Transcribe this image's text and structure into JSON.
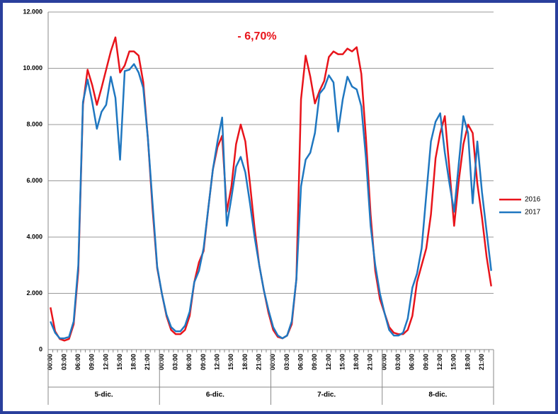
{
  "chart_data": {
    "type": "line",
    "annotation": "- 6,70%",
    "categories": [
      "00:00",
      null,
      null,
      "03:00",
      null,
      null,
      "06:00",
      null,
      null,
      "09:00",
      null,
      null,
      "12:00",
      null,
      null,
      "15:00",
      null,
      null,
      "18:00",
      null,
      null,
      "21:00",
      null,
      null,
      "00:00",
      null,
      null,
      "03:00",
      null,
      null,
      "06:00",
      null,
      null,
      "09:00",
      null,
      null,
      "12:00",
      null,
      null,
      "15:00",
      null,
      null,
      "18:00",
      null,
      null,
      "21:00",
      null,
      null,
      "00:00",
      null,
      null,
      "03:00",
      null,
      null,
      "06:00",
      null,
      null,
      "09:00",
      null,
      null,
      "12:00",
      null,
      null,
      "15:00",
      null,
      null,
      "18:00",
      null,
      null,
      "21:00",
      null,
      null,
      "00:00",
      null,
      null,
      "03:00",
      null,
      null,
      "06:00",
      null,
      null,
      "09:00",
      null,
      null,
      "12:00",
      null,
      null,
      "15:00",
      null,
      null,
      "18:00",
      null,
      null,
      "21:00",
      null,
      null
    ],
    "day_labels": [
      "5-dic.",
      "6-dic.",
      "7-dic.",
      "8-dic."
    ],
    "series": [
      {
        "name": "2016",
        "color": "#e8141b",
        "values": [
          1500,
          650,
          380,
          320,
          380,
          900,
          2800,
          8700,
          9950,
          9400,
          8700,
          9300,
          9950,
          10600,
          11100,
          9850,
          10100,
          10600,
          10600,
          10450,
          9500,
          7500,
          5000,
          2900,
          2000,
          1200,
          700,
          550,
          550,
          700,
          1200,
          2400,
          3100,
          3500,
          5000,
          6400,
          7200,
          7600,
          4900,
          5800,
          7300,
          8000,
          7400,
          5900,
          4300,
          3000,
          2100,
          1300,
          700,
          450,
          400,
          500,
          900,
          2500,
          8900,
          10450,
          9700,
          8750,
          9200,
          9550,
          10400,
          10600,
          10500,
          10500,
          10700,
          10600,
          10750,
          9800,
          7500,
          4800,
          2800,
          1800,
          1300,
          800,
          600,
          550,
          550,
          700,
          1200,
          2400,
          3000,
          3600,
          4800,
          6800,
          7700,
          8300,
          6400,
          4400,
          6000,
          7300,
          8000,
          7700,
          5900,
          4700,
          3300,
          2250
        ]
      },
      {
        "name": "2017",
        "color": "#1f77c0",
        "values": [
          1000,
          600,
          400,
          400,
          450,
          1000,
          3000,
          8800,
          9600,
          8800,
          7850,
          8450,
          8700,
          9700,
          8950,
          6750,
          9900,
          9950,
          10150,
          9850,
          9300,
          7500,
          5200,
          2950,
          2000,
          1250,
          800,
          650,
          650,
          850,
          1350,
          2400,
          2800,
          3600,
          5000,
          6400,
          7400,
          8250,
          4400,
          5400,
          6500,
          6850,
          6300,
          5200,
          4000,
          3000,
          2100,
          1400,
          800,
          500,
          400,
          500,
          1000,
          2500,
          5800,
          6750,
          7000,
          7700,
          9100,
          9300,
          9750,
          9500,
          7750,
          8900,
          9700,
          9350,
          9250,
          8650,
          6800,
          4400,
          3000,
          2000,
          1300,
          700,
          500,
          500,
          600,
          1100,
          2200,
          2700,
          3600,
          5500,
          7400,
          8100,
          8400,
          7000,
          5900,
          4900,
          6600,
          8300,
          7700,
          5200,
          7400,
          5600,
          4200,
          2800
        ]
      }
    ],
    "ylim": [
      0,
      12000
    ],
    "yticks": [
      0,
      {
        "value": 2000,
        "label": "2.000"
      },
      {
        "value": 4000,
        "label": "4.000"
      },
      {
        "value": 6000,
        "label": "6.000"
      },
      {
        "value": 8000,
        "label": "8.000"
      },
      {
        "value": 10000,
        "label": "10.000"
      },
      {
        "value": 12000,
        "label": "12.000"
      }
    ],
    "grid": true
  }
}
